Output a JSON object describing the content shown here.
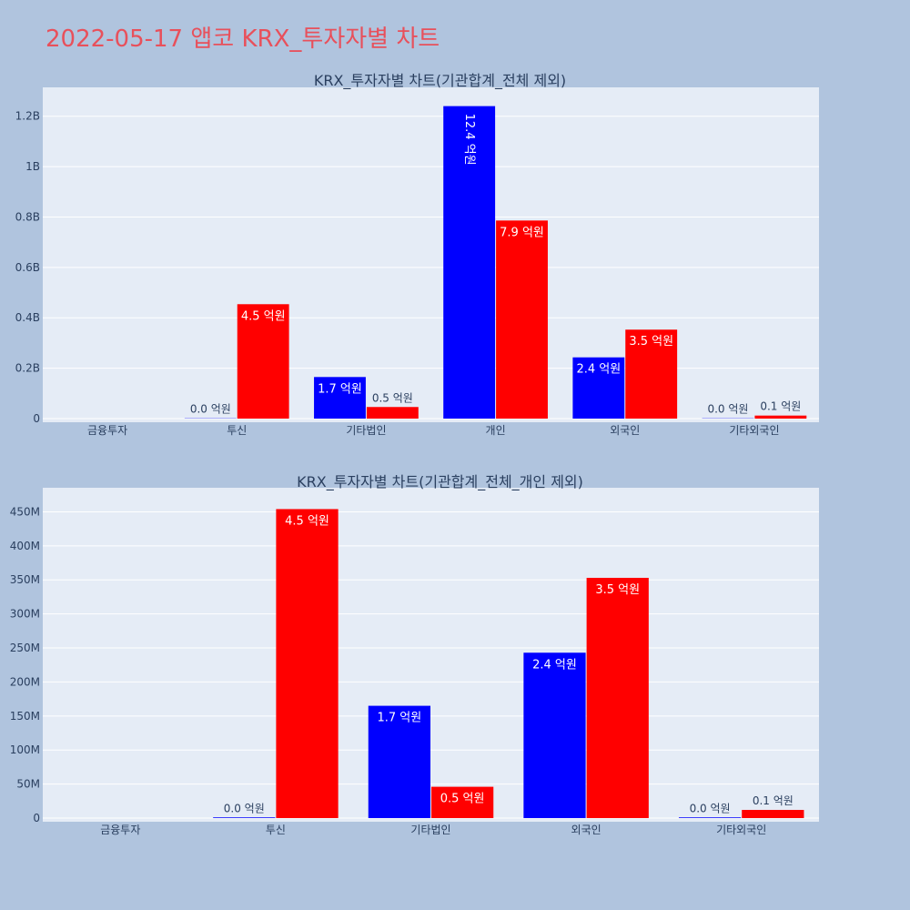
{
  "page": {
    "title": "2022-05-17 앱코 KRX_투자자별 차트"
  },
  "colors": {
    "page_bg": "#b0c4de",
    "plot_bg": "#e5ecf6",
    "grid": "#ffffff",
    "buy": "#0000ff",
    "sell": "#ff0000",
    "title": "#e8505b",
    "axis_text": "#2a3f5f"
  },
  "chart_data": [
    {
      "type": "bar",
      "title": "KRX_투자자별 차트(기관합계_전체 제외)",
      "categories": [
        "금융투자",
        "투신",
        "기타법인",
        "개인",
        "외국인",
        "기타외국인"
      ],
      "series": [
        {
          "color": "buy",
          "values": [
            0,
            1000000,
            165000000,
            1240000000,
            243000000,
            1000000
          ],
          "labels": [
            "",
            "0.0 억원",
            "1.7 억원",
            "12.4 억원",
            "2.4 억원",
            "0.0 억원"
          ]
        },
        {
          "color": "sell",
          "values": [
            0,
            454000000,
            46000000,
            786000000,
            353000000,
            12000000
          ],
          "labels": [
            "",
            "4.5 억원",
            "0.5 억원",
            "7.9 억원",
            "3.5 억원",
            "0.1 억원"
          ]
        }
      ],
      "ylim": [
        0,
        1300000000
      ],
      "yticks": [
        0,
        200000000,
        400000000,
        600000000,
        800000000,
        1000000000,
        1200000000
      ],
      "ytick_labels": [
        "0",
        "0.2B",
        "0.4B",
        "0.6B",
        "0.8B",
        "1B",
        "1.2B"
      ],
      "grid": true
    },
    {
      "type": "bar",
      "title": "KRX_투자자별 차트(기관합계_전체_개인 제외)",
      "categories": [
        "금융투자",
        "투신",
        "기타법인",
        "외국인",
        "기타외국인"
      ],
      "series": [
        {
          "color": "buy",
          "values": [
            0,
            1000000,
            165000000,
            243000000,
            1000000
          ],
          "labels": [
            "",
            "0.0 억원",
            "1.7 억원",
            "2.4 억원",
            "0.0 억원"
          ]
        },
        {
          "color": "sell",
          "values": [
            0,
            454000000,
            46000000,
            353000000,
            12000000
          ],
          "labels": [
            "",
            "4.5 억원",
            "0.5 억원",
            "3.5 억원",
            "0.1 억원"
          ]
        }
      ],
      "ylim": [
        0,
        480000000
      ],
      "yticks": [
        0,
        50000000,
        100000000,
        150000000,
        200000000,
        250000000,
        300000000,
        350000000,
        400000000,
        450000000
      ],
      "ytick_labels": [
        "0",
        "50M",
        "100M",
        "150M",
        "200M",
        "250M",
        "300M",
        "350M",
        "400M",
        "450M"
      ],
      "grid": true
    }
  ]
}
